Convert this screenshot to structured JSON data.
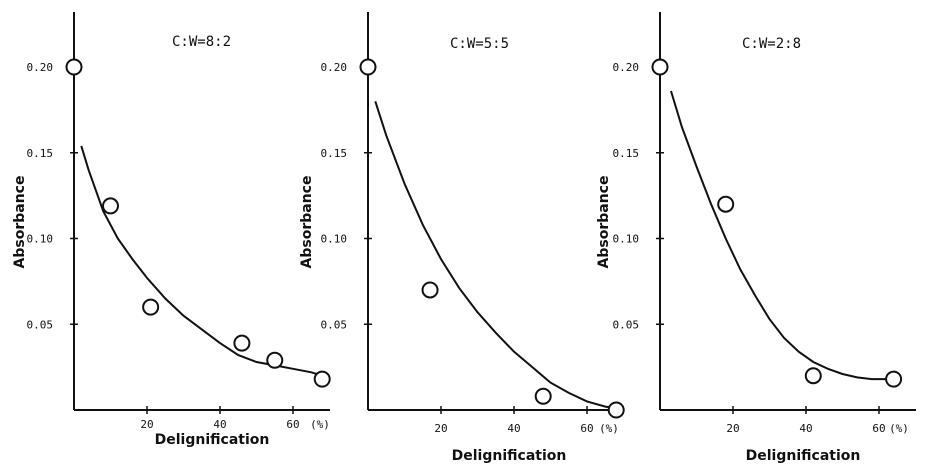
{
  "chart_data": [
    {
      "type": "scatter",
      "title": "C:W=8:2",
      "xlabel": "Delignification",
      "ylabel": "Absorbance",
      "x_unit": "(%)",
      "xlim": [
        0,
        68
      ],
      "ylim": [
        0,
        0.21
      ],
      "x_ticks": [
        "20",
        "40",
        "60"
      ],
      "y_ticks": [
        "0.05",
        "0.10",
        "0.15",
        "0.20"
      ],
      "points": {
        "x": [
          0,
          10,
          21,
          46,
          55,
          68
        ],
        "y": [
          0.2,
          0.119,
          0.06,
          0.039,
          0.029,
          0.018
        ]
      },
      "curve": {
        "x": [
          2,
          4,
          8,
          12,
          16,
          20,
          25,
          30,
          35,
          40,
          45,
          50,
          55,
          60,
          65,
          68
        ],
        "y": [
          0.154,
          0.14,
          0.116,
          0.1,
          0.088,
          0.077,
          0.065,
          0.055,
          0.047,
          0.039,
          0.032,
          0.028,
          0.026,
          0.024,
          0.022,
          0.02
        ]
      }
    },
    {
      "type": "scatter",
      "title": "C:W=5:5",
      "xlabel": "Delignification",
      "ylabel": "Absorbance",
      "x_unit": "(%)",
      "xlim": [
        0,
        68
      ],
      "ylim": [
        0,
        0.21
      ],
      "x_ticks": [
        "20",
        "40",
        "60"
      ],
      "y_ticks": [
        "0.05",
        "0.10",
        "0.15",
        "0.20"
      ],
      "points": {
        "x": [
          0,
          17,
          48,
          68
        ],
        "y": [
          0.2,
          0.07,
          0.008,
          0.0
        ]
      },
      "curve": {
        "x": [
          2,
          5,
          10,
          15,
          20,
          25,
          30,
          35,
          40,
          45,
          50,
          55,
          60,
          65,
          68
        ],
        "y": [
          0.18,
          0.16,
          0.132,
          0.108,
          0.088,
          0.071,
          0.057,
          0.045,
          0.034,
          0.025,
          0.016,
          0.01,
          0.005,
          0.002,
          0.001
        ]
      }
    },
    {
      "type": "scatter",
      "title": "C:W=2:8",
      "xlabel": "Delignification",
      "ylabel": "Absorbance",
      "x_unit": "(%)",
      "xlim": [
        0,
        68
      ],
      "ylim": [
        0,
        0.21
      ],
      "x_ticks": [
        "20",
        "40",
        "60"
      ],
      "y_ticks": [
        "0.05",
        "0.10",
        "0.15",
        "0.20"
      ],
      "points": {
        "x": [
          0,
          18,
          42,
          64
        ],
        "y": [
          0.2,
          0.12,
          0.02,
          0.018
        ]
      },
      "curve": {
        "x": [
          3,
          6,
          10,
          14,
          18,
          22,
          26,
          30,
          34,
          38,
          42,
          46,
          50,
          54,
          58,
          62
        ],
        "y": [
          0.186,
          0.165,
          0.142,
          0.12,
          0.1,
          0.082,
          0.067,
          0.053,
          0.042,
          0.034,
          0.028,
          0.024,
          0.021,
          0.019,
          0.018,
          0.018
        ]
      }
    }
  ]
}
